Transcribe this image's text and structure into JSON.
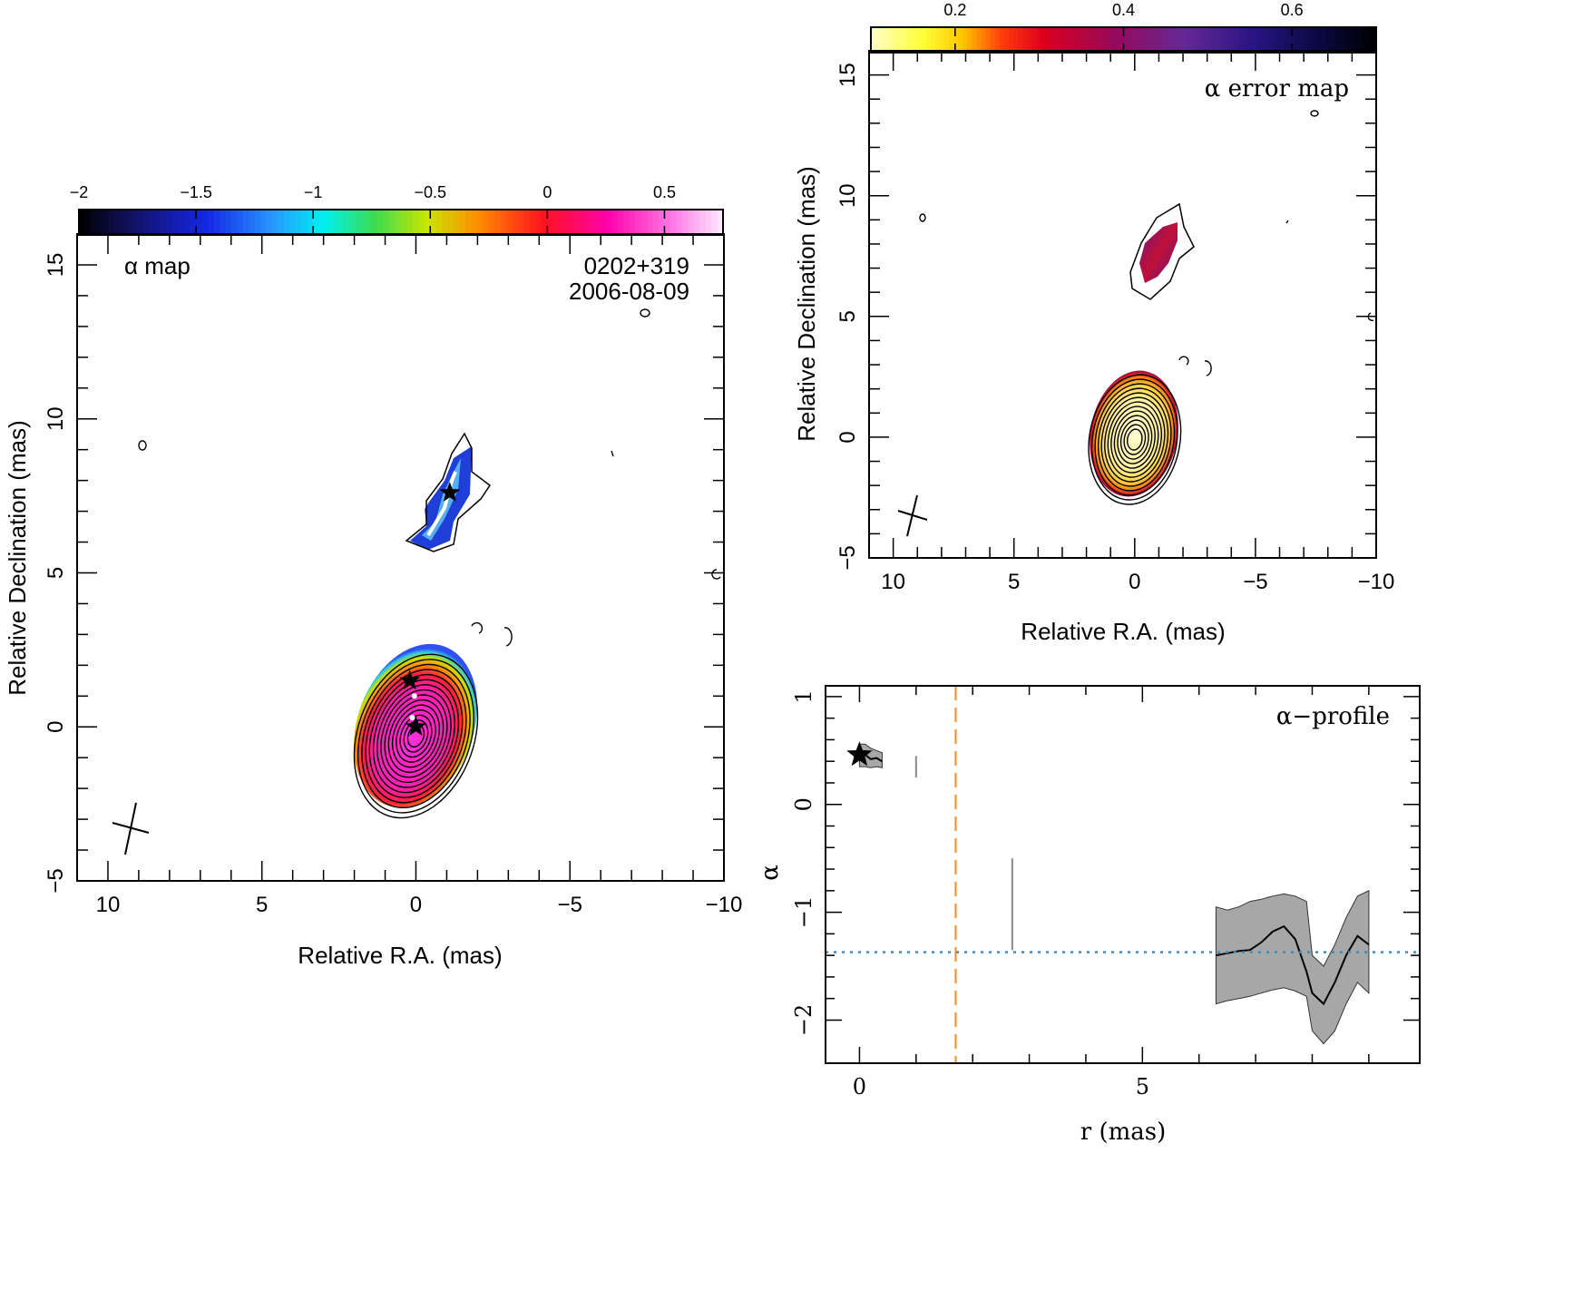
{
  "chart_data": [
    {
      "type": "heatmap",
      "panel": "alpha-map",
      "label": "α map",
      "source": "0202+319",
      "date": "2006-08-09",
      "xlabel": "Relative R.A. (mas)",
      "ylabel": "Relative Declination (mas)",
      "xlim": [
        11,
        -10
      ],
      "ylim": [
        -5,
        16
      ],
      "x_ticks": [
        10,
        5,
        0,
        -5,
        -10
      ],
      "y_ticks": [
        -5,
        0,
        5,
        10,
        15
      ],
      "colorbar": {
        "range": [
          -2,
          0.75
        ],
        "ticks": [
          -2,
          -1.5,
          -1,
          -0.5,
          0,
          0.5
        ],
        "tick_labels": [
          "−2",
          "−1.5",
          "−1",
          "−0.5",
          "0",
          "0.5"
        ],
        "colormap": "rainbow-black-to-white"
      },
      "components": [
        {
          "name": "core",
          "ra": 0.0,
          "dec": 0.0,
          "alpha": 0.6
        },
        {
          "name": "jet",
          "ra": -1.0,
          "dec": 7.6,
          "alpha": -1.6
        }
      ],
      "markers": [
        {
          "ra": 0.2,
          "dec": 1.5
        },
        {
          "ra": 0.0,
          "dec": 0.0
        },
        {
          "ra": -1.1,
          "dec": 7.6
        }
      ]
    },
    {
      "type": "heatmap",
      "panel": "alpha-error-map",
      "label": "α error map",
      "xlabel": "Relative R.A. (mas)",
      "ylabel": "Relative Declination (mas)",
      "xlim": [
        11,
        -10
      ],
      "ylim": [
        -5,
        16
      ],
      "x_ticks": [
        10,
        5,
        0,
        -5,
        -10
      ],
      "y_ticks": [
        -5,
        0,
        5,
        10,
        15
      ],
      "colorbar": {
        "range": [
          0.1,
          0.7
        ],
        "ticks": [
          0.2,
          0.4,
          0.6
        ],
        "tick_labels": [
          "0.2",
          "0.4",
          "0.6"
        ],
        "colormap": "yellow-red-purple-black"
      }
    },
    {
      "type": "line",
      "panel": "alpha-profile",
      "label": "α−profile",
      "xlabel": "r (mas)",
      "ylabel": "α",
      "xlim": [
        -0.6,
        9.9
      ],
      "ylim": [
        -2.4,
        1.1
      ],
      "x_ticks": [
        0,
        5
      ],
      "y_ticks": [
        1,
        0,
        -1,
        -2
      ],
      "y_tick_labels": [
        "1",
        "0",
        "−1",
        "−2"
      ],
      "series": [
        {
          "x": [
            0.0,
            0.1,
            0.2,
            0.3,
            0.4
          ],
          "y": [
            0.44,
            0.46,
            0.42,
            0.43,
            0.4
          ],
          "upper": [
            0.56,
            0.56,
            0.52,
            0.5,
            0.48
          ],
          "lower": [
            0.35,
            0.35,
            0.34,
            0.35,
            0.34
          ]
        },
        {
          "x": [
            6.3,
            6.5,
            6.7,
            6.9,
            7.1,
            7.3,
            7.5,
            7.7,
            7.9,
            8.0,
            8.2,
            8.4,
            8.6,
            8.8,
            9.0
          ],
          "y": [
            -1.4,
            -1.38,
            -1.36,
            -1.35,
            -1.28,
            -1.18,
            -1.13,
            -1.25,
            -1.55,
            -1.75,
            -1.85,
            -1.65,
            -1.4,
            -1.22,
            -1.3
          ],
          "upper": [
            -0.95,
            -0.98,
            -0.95,
            -0.9,
            -0.88,
            -0.85,
            -0.83,
            -0.85,
            -0.9,
            -1.4,
            -1.5,
            -1.3,
            -1.05,
            -0.85,
            -0.8
          ],
          "lower": [
            -1.85,
            -1.82,
            -1.8,
            -1.78,
            -1.75,
            -1.72,
            -1.7,
            -1.73,
            -1.78,
            -2.1,
            -2.22,
            -2.1,
            -1.85,
            -1.65,
            -1.75
          ]
        }
      ],
      "reference_lines": [
        {
          "orientation": "horizontal",
          "value": -1.37,
          "color": "#2e8fd6",
          "style": "dotted"
        },
        {
          "orientation": "vertical",
          "value": 1.7,
          "color": "#f08a24",
          "style": "dashed"
        }
      ],
      "grey_marks": [
        {
          "x": 1.0,
          "y1": 0.25,
          "y2": 0.45
        },
        {
          "x": 2.7,
          "y1": -1.35,
          "y2": -0.5
        }
      ],
      "markers": [
        {
          "x": 0.0,
          "y": 0.46
        }
      ]
    }
  ]
}
